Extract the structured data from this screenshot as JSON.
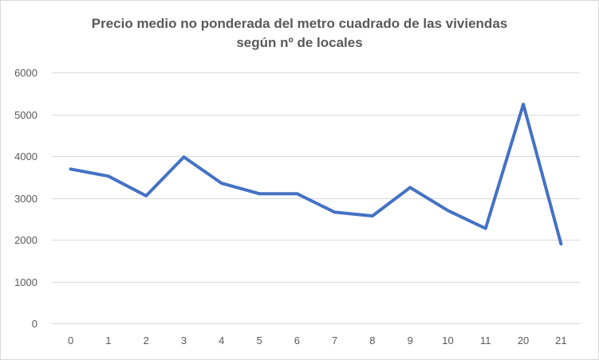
{
  "chart_data": {
    "type": "line",
    "title_lines": [
      "Precio medio no ponderada del metro cuadrado de las viviendas",
      "según nº de locales"
    ],
    "xlabel": "",
    "ylabel": "",
    "categories": [
      "0",
      "1",
      "2",
      "3",
      "4",
      "5",
      "6",
      "7",
      "8",
      "9",
      "10",
      "11",
      "20",
      "21"
    ],
    "series": [
      {
        "values": [
          3690,
          3520,
          3050,
          3980,
          3350,
          3100,
          3100,
          2660,
          2570,
          3250,
          2700,
          2270,
          5240,
          1900
        ],
        "color": "#4472c4"
      }
    ],
    "ylim": [
      0,
      6000
    ],
    "y_ticks": [
      0,
      1000,
      2000,
      3000,
      4000,
      5000,
      6000
    ],
    "grid": true,
    "legend": "none"
  }
}
